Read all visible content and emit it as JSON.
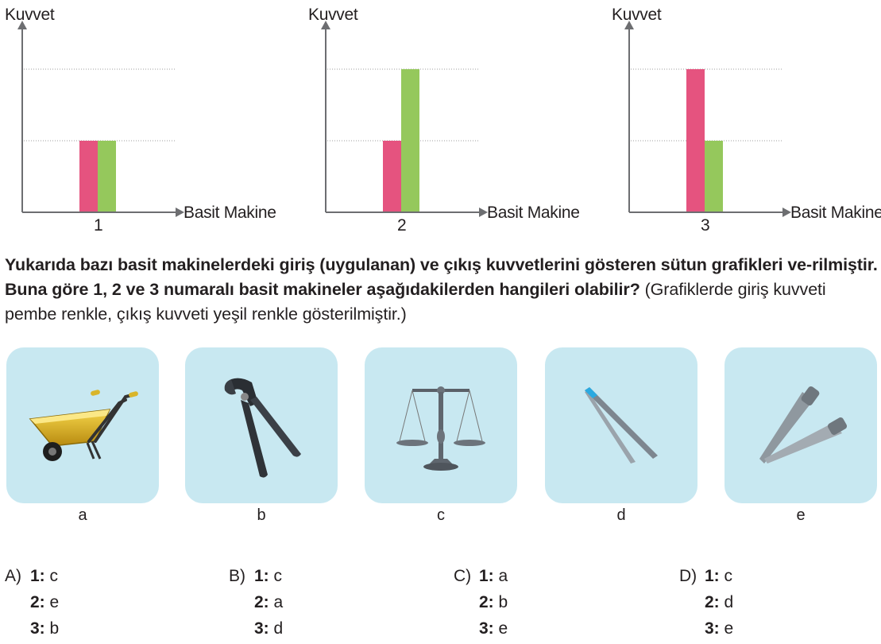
{
  "chart_data": [
    {
      "type": "bar",
      "ylabel": "Kuvvet",
      "xlabel": "Basit Makine",
      "categories": [
        "1"
      ],
      "series": [
        {
          "name": "giriş kuvveti",
          "color": "#e5537f",
          "values": [
            1
          ]
        },
        {
          "name": "çıkış kuvveti",
          "color": "#95c85c",
          "values": [
            1
          ]
        }
      ],
      "ylim": [
        0,
        2
      ],
      "grid": true
    },
    {
      "type": "bar",
      "ylabel": "Kuvvet",
      "xlabel": "Basit Makine",
      "categories": [
        "2"
      ],
      "series": [
        {
          "name": "giriş kuvveti",
          "color": "#e5537f",
          "values": [
            1
          ]
        },
        {
          "name": "çıkış kuvveti",
          "color": "#95c85c",
          "values": [
            2
          ]
        }
      ],
      "ylim": [
        0,
        2
      ],
      "grid": true
    },
    {
      "type": "bar",
      "ylabel": "Kuvvet",
      "xlabel": "Basit Makine",
      "categories": [
        "3"
      ],
      "series": [
        {
          "name": "giriş kuvveti",
          "color": "#e5537f",
          "values": [
            2
          ]
        },
        {
          "name": "çıkış kuvveti",
          "color": "#95c85c",
          "values": [
            1
          ]
        }
      ],
      "ylim": [
        0,
        2
      ],
      "grid": true
    }
  ],
  "question": {
    "bold_text": "Yukarıda bazı basit makinelerdeki giriş (uygulanan) ve çıkış kuvvetlerini gösteren sütun grafikleri ve-rilmiştir. Buna göre 1, 2 ve 3 numaralı basit makineler aşağıdakilerden hangileri olabilir?",
    "normal_text": " (Grafiklerde giriş kuvveti pembe renkle, çıkış kuvveti yeşil renkle gösterilmiştir.)"
  },
  "tools": [
    {
      "label": "a",
      "icon": "wheelbarrow-icon"
    },
    {
      "label": "b",
      "icon": "end-cutting-pliers-icon"
    },
    {
      "label": "c",
      "icon": "balance-scale-icon"
    },
    {
      "label": "d",
      "icon": "tweezers-icon"
    },
    {
      "label": "e",
      "icon": "tongs-icon"
    }
  ],
  "options": [
    {
      "letter": "A)",
      "answers": [
        {
          "num": "1:",
          "val": "c"
        },
        {
          "num": "2:",
          "val": "e"
        },
        {
          "num": "3:",
          "val": "b"
        }
      ]
    },
    {
      "letter": "B)",
      "answers": [
        {
          "num": "1:",
          "val": "c"
        },
        {
          "num": "2:",
          "val": "a"
        },
        {
          "num": "3:",
          "val": "d"
        }
      ]
    },
    {
      "letter": "C)",
      "answers": [
        {
          "num": "1:",
          "val": "a"
        },
        {
          "num": "2:",
          "val": "b"
        },
        {
          "num": "3:",
          "val": "e"
        }
      ]
    },
    {
      "letter": "D)",
      "answers": [
        {
          "num": "1:",
          "val": "c"
        },
        {
          "num": "2:",
          "val": "d"
        },
        {
          "num": "3:",
          "val": "e"
        }
      ]
    }
  ]
}
